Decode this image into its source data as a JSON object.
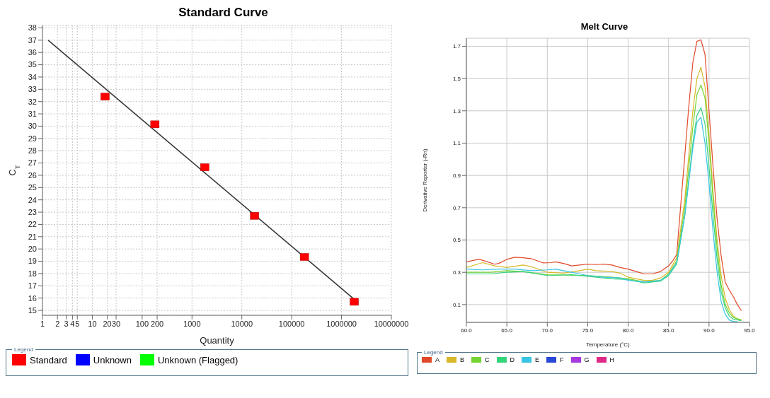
{
  "chart_data": [
    {
      "type": "scatter",
      "title": "Standard Curve",
      "xlabel": "Quantity",
      "ylabel": "C$_{T}$",
      "log": "x",
      "grid": true,
      "legend": "bottom",
      "legend_title": "Legend",
      "marker": "square",
      "xlim": [
        1,
        10000000
      ],
      "xticks": [
        1,
        2,
        3,
        4,
        5,
        10,
        20,
        30,
        100,
        200,
        1000,
        10000,
        100000,
        1000000,
        10000000
      ],
      "ylim": [
        14.6,
        38.2
      ],
      "yticks": [
        15,
        16,
        17,
        18,
        19,
        20,
        21,
        22,
        23,
        24,
        25,
        26,
        27,
        28,
        29,
        30,
        31,
        32,
        33,
        34,
        35,
        36,
        37,
        38
      ],
      "series": [
        {
          "type": "line",
          "color": "#333333",
          "marker": "none",
          "x": [
            1.3,
            1800000
          ],
          "values": [
            37.0,
            15.9
          ]
        },
        {
          "name": "Standard",
          "color": "#ff0000",
          "x": [
            18,
            180,
            1800,
            18000,
            180000,
            1800000
          ],
          "values": [
            32.4,
            30.15,
            26.65,
            22.7,
            19.35,
            15.7
          ]
        },
        {
          "name": "Unknown",
          "color": "#0000ff"
        },
        {
          "name": "Unknown (Flagged)",
          "color": "#00ff00"
        }
      ]
    },
    {
      "type": "line",
      "title": "Melt Curve",
      "xlabel": "Temperature (°C)",
      "ylabel": "Derivative Reporter (-Rn)",
      "grid": true,
      "legend": "bottom",
      "legend_title": "Legend",
      "marker": "none",
      "xlim": [
        60,
        95
      ],
      "xticks": [
        {
          "value": 60,
          "label": "60.0"
        },
        {
          "value": 65,
          "label": "65.0"
        },
        {
          "value": 70,
          "label": "70.0"
        },
        {
          "value": 75,
          "label": "75.0"
        },
        {
          "value": 80,
          "label": "80.0"
        },
        {
          "value": 85,
          "label": "85.0"
        },
        {
          "value": 90,
          "label": "90.0"
        },
        {
          "value": 95,
          "label": "95.0"
        }
      ],
      "ylim": [
        -0.01,
        1.75
      ],
      "yticks": [
        0.1,
        0.3,
        0.5,
        0.7,
        0.9,
        1.1,
        1.3,
        1.5,
        1.7
      ],
      "series": [
        {
          "name": "A",
          "color": "#e04a2a",
          "x": [
            60,
            61.5,
            62,
            63.5,
            64,
            65,
            66,
            67,
            68,
            69.5,
            70.5,
            71,
            72,
            73,
            74,
            75,
            76,
            77,
            78,
            79,
            80,
            81,
            82,
            83,
            84,
            85,
            85.5,
            86,
            86.5,
            87,
            87.5,
            88,
            88.5,
            89,
            89.5,
            90,
            90.5,
            91,
            91.5,
            92,
            92.5,
            93,
            93.5,
            94
          ],
          "values": [
            0.365,
            0.38,
            0.375,
            0.35,
            0.355,
            0.38,
            0.393,
            0.39,
            0.385,
            0.358,
            0.36,
            0.365,
            0.355,
            0.34,
            0.345,
            0.35,
            0.348,
            0.35,
            0.345,
            0.33,
            0.32,
            0.305,
            0.29,
            0.29,
            0.305,
            0.34,
            0.37,
            0.41,
            0.715,
            1.02,
            1.33,
            1.6,
            1.73,
            1.74,
            1.65,
            1.3,
            0.95,
            0.63,
            0.4,
            0.24,
            0.19,
            0.15,
            0.1,
            0.063
          ]
        },
        {
          "name": "B",
          "color": "#d8b828",
          "x": [
            60,
            62,
            63.5,
            65,
            67,
            68,
            70,
            72,
            74,
            75,
            76,
            78,
            79,
            80,
            82,
            83,
            84,
            85,
            86,
            87,
            88,
            88.5,
            89,
            89.5,
            90,
            90.5,
            91,
            91.5,
            92,
            92.5,
            93,
            93.5,
            94
          ],
          "values": [
            0.33,
            0.36,
            0.34,
            0.33,
            0.345,
            0.335,
            0.3,
            0.295,
            0.31,
            0.32,
            0.31,
            0.305,
            0.295,
            0.27,
            0.25,
            0.25,
            0.265,
            0.3,
            0.39,
            0.75,
            1.3,
            1.5,
            1.57,
            1.45,
            1.15,
            0.8,
            0.5,
            0.28,
            0.14,
            0.07,
            0.03,
            0.01,
            0.005
          ]
        },
        {
          "name": "C",
          "color": "#74d434",
          "x": [
            60,
            63,
            65,
            67,
            70,
            75,
            78,
            80,
            82,
            84,
            85,
            86,
            87,
            88,
            88.5,
            89,
            89.5,
            90,
            90.5,
            91,
            91.5,
            92,
            92.5,
            93,
            94
          ],
          "values": [
            0.3,
            0.3,
            0.31,
            0.305,
            0.285,
            0.28,
            0.27,
            0.26,
            0.24,
            0.25,
            0.29,
            0.37,
            0.7,
            1.2,
            1.4,
            1.46,
            1.38,
            1.1,
            0.75,
            0.45,
            0.22,
            0.1,
            0.05,
            0.02,
            0.005
          ]
        },
        {
          "name": "D",
          "color": "#34d47a",
          "x": [
            60,
            63,
            65,
            67,
            70,
            73,
            75,
            78,
            80,
            82,
            84,
            85,
            86,
            87,
            88,
            88.5,
            89,
            89.5,
            90,
            90.5,
            91,
            91.5,
            92,
            92.5,
            93,
            94
          ],
          "values": [
            0.29,
            0.29,
            0.3,
            0.305,
            0.28,
            0.285,
            0.275,
            0.26,
            0.255,
            0.235,
            0.245,
            0.28,
            0.35,
            0.65,
            1.1,
            1.27,
            1.32,
            1.22,
            0.95,
            0.65,
            0.38,
            0.18,
            0.08,
            0.03,
            0.01,
            0.0
          ]
        },
        {
          "name": "E",
          "color": "#38c4e4",
          "x": [
            60,
            62,
            64,
            66,
            68,
            70,
            71,
            73,
            75,
            77,
            79,
            80,
            82,
            84,
            85,
            86,
            87,
            88,
            88.5,
            89,
            89.5,
            90,
            90.5,
            91,
            91.5,
            92,
            92.5,
            93,
            93.5
          ],
          "values": [
            0.32,
            0.315,
            0.32,
            0.32,
            0.31,
            0.315,
            0.32,
            0.3,
            0.28,
            0.27,
            0.265,
            0.25,
            0.24,
            0.25,
            0.285,
            0.36,
            0.65,
            1.07,
            1.23,
            1.26,
            1.1,
            0.85,
            0.55,
            0.3,
            0.12,
            0.04,
            0.005,
            -0.005,
            -0.005
          ]
        },
        {
          "name": "F",
          "color": "#2a48d8"
        },
        {
          "name": "G",
          "color": "#a838e0"
        },
        {
          "name": "H",
          "color": "#e02888"
        }
      ]
    }
  ]
}
